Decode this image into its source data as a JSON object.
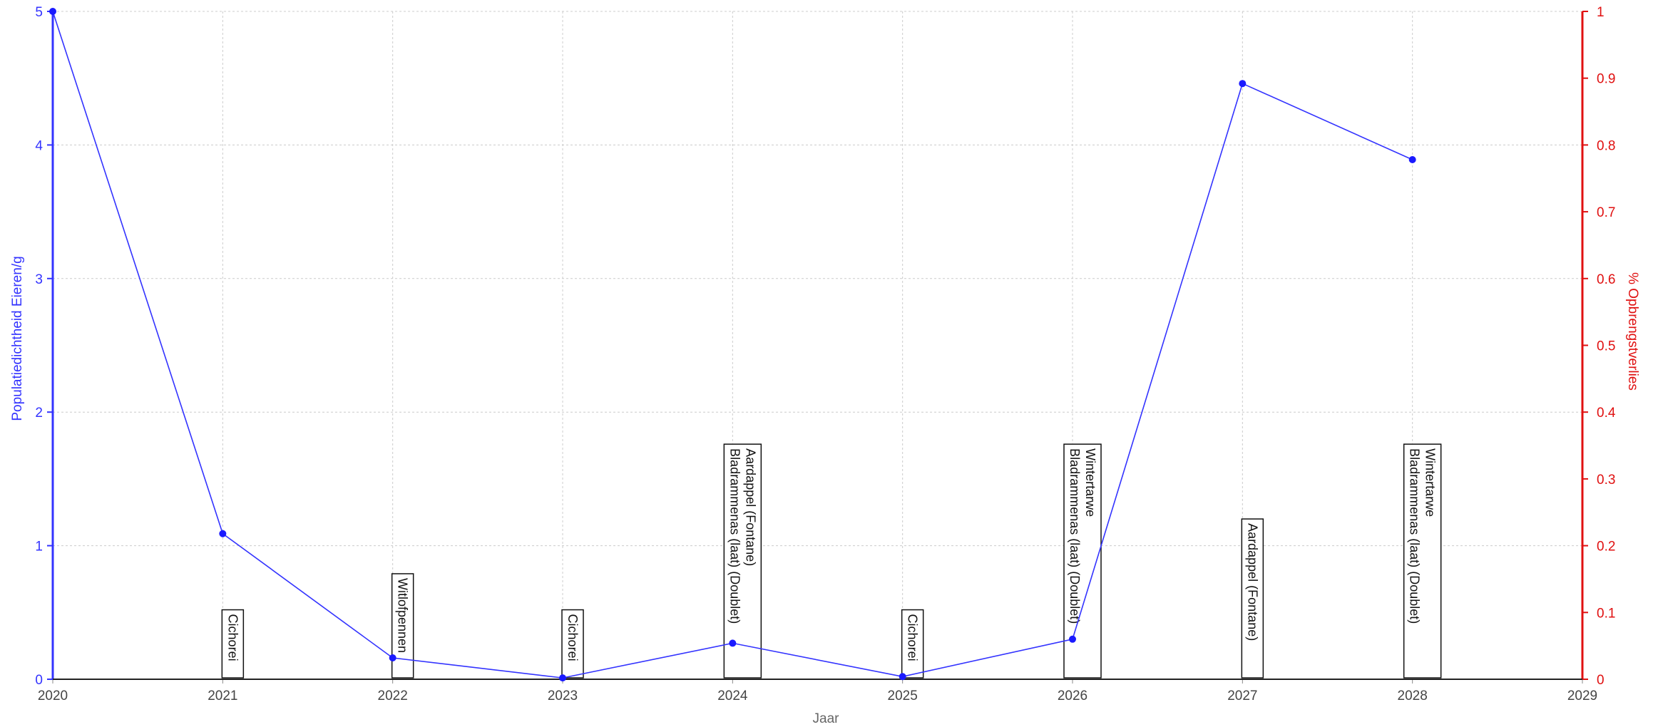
{
  "chart_data": {
    "type": "line",
    "xlabel": "Jaar",
    "ylabel": "Populatiedichtheid Eieren/g",
    "y2label": "% Opbrengstverlies",
    "xlim": [
      2020,
      2029
    ],
    "ylim": [
      0,
      5
    ],
    "y2lim": [
      0,
      1
    ],
    "x_ticks": [
      "2020",
      "2021",
      "2022",
      "2023",
      "2024",
      "2025",
      "2026",
      "2027",
      "2028",
      "2029"
    ],
    "y_ticks": [
      "0",
      "1",
      "2",
      "3",
      "4",
      "5"
    ],
    "y2_ticks": [
      "0",
      "0.1",
      "0.2",
      "0.3",
      "0.4",
      "0.5",
      "0.6",
      "0.7",
      "0.8",
      "0.9",
      "1"
    ],
    "grid": true,
    "series": [
      {
        "axis": "left",
        "color": "#3333ff",
        "x": [
          2020,
          2021,
          2022,
          2023,
          2024,
          2025,
          2026,
          2027,
          2028
        ],
        "values": [
          5.0,
          1.09,
          0.16,
          0.01,
          0.27,
          0.02,
          0.3,
          4.46,
          3.89
        ]
      }
    ],
    "crop_labels": [
      {
        "year": 2021,
        "lines": [
          "Cichorei"
        ],
        "height": 0.52
      },
      {
        "year": 2022,
        "lines": [
          "Witlofpennen"
        ],
        "height": 0.79
      },
      {
        "year": 2023,
        "lines": [
          "Cichorei"
        ],
        "height": 0.52
      },
      {
        "year": 2024,
        "lines": [
          "Bladrammenas (laat) (Doublet)",
          "Aardappel (Fontane)"
        ],
        "height": 1.76
      },
      {
        "year": 2025,
        "lines": [
          "Cichorei"
        ],
        "height": 0.52
      },
      {
        "year": 2026,
        "lines": [
          "Bladrammenas (laat) (Doublet)",
          "Wintertarwe"
        ],
        "height": 1.76
      },
      {
        "year": 2027,
        "lines": [
          "Aardappel (Fontane)"
        ],
        "height": 1.2
      },
      {
        "year": 2028,
        "lines": [
          "Bladrammenas (laat) (Doublet)",
          "Wintertarwe"
        ],
        "height": 1.76
      }
    ]
  },
  "colors": {
    "left_axis": "#3333ff",
    "right_axis": "#e01010",
    "grid": "#cccccc"
  }
}
